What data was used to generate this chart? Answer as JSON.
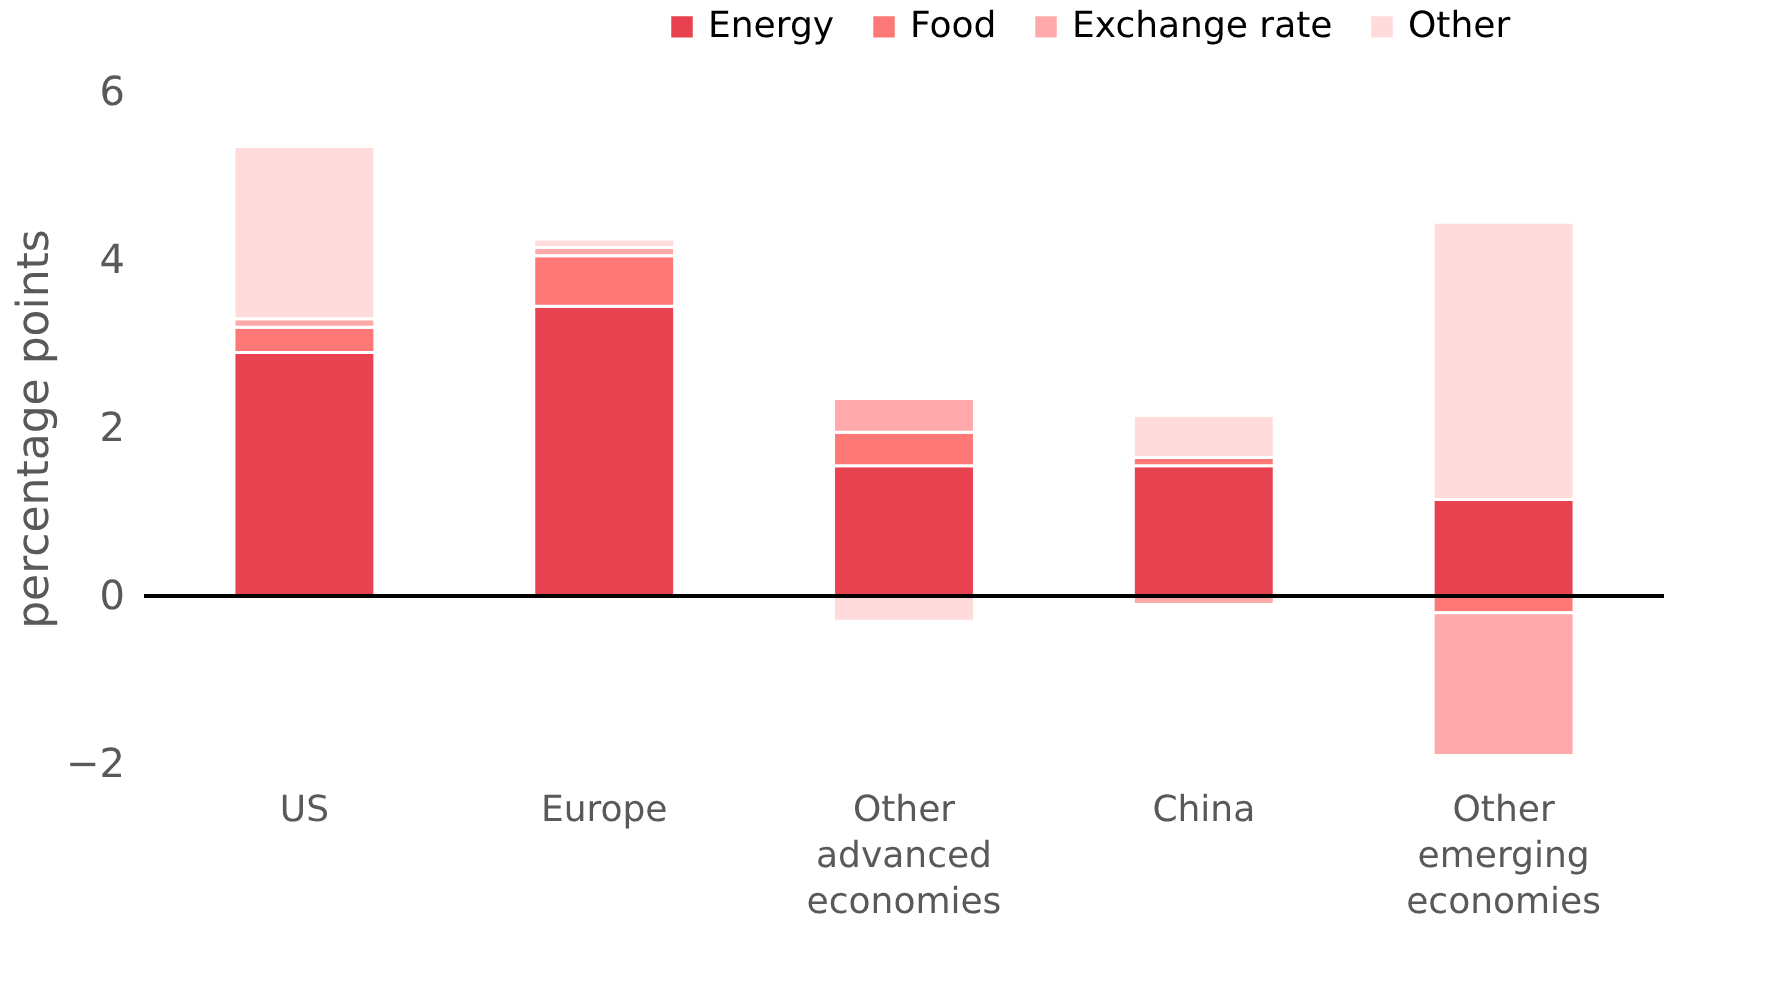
{
  "chart_data": {
    "type": "bar",
    "stacked": true,
    "ylabel": "percentage points",
    "categories": [
      "US",
      "Europe",
      "Other advanced economies",
      "China",
      "Other emerging economies"
    ],
    "series": [
      {
        "name": "Energy",
        "color": "#e8414f",
        "values": [
          2.9,
          3.45,
          1.55,
          1.55,
          1.15
        ]
      },
      {
        "name": "Food",
        "color": "#ff7878",
        "values": [
          0.3,
          0.6,
          0.4,
          0.1,
          -0.2
        ]
      },
      {
        "name": "Exchange rate",
        "color": "#ffa9aa",
        "values": [
          0.1,
          0.1,
          0.4,
          -0.1,
          -1.7
        ]
      },
      {
        "name": "Other",
        "color": "#ffdbdb",
        "values": [
          2.05,
          0.1,
          -0.3,
          0.5,
          3.3
        ]
      }
    ],
    "ref_lines": [
      {
        "axis": "y",
        "value": 0,
        "color": "#000000"
      }
    ],
    "ylim": [
      -2,
      6
    ],
    "yticks": [
      -2,
      0,
      2,
      4,
      6
    ],
    "grid": false,
    "legend": "top right"
  }
}
